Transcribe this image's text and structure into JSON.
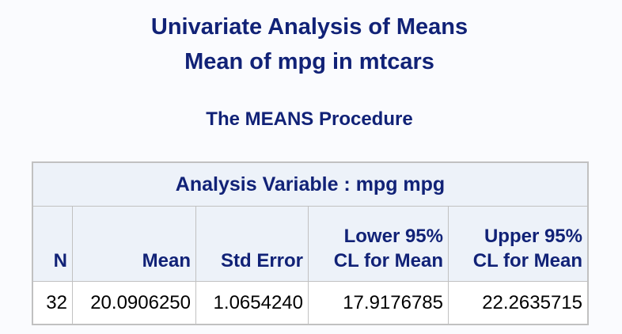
{
  "titles": {
    "line1": "Univariate Analysis of Means",
    "line2": "Mean of mpg in mtcars"
  },
  "procedure": "The MEANS Procedure",
  "colors": {
    "title_text": "#112277",
    "header_background": "#edf2f9",
    "page_background": "#fafbfe",
    "border": "#c1c1c1"
  },
  "table": {
    "caption": "Analysis Variable : mpg mpg",
    "columns": [
      {
        "lines": [
          "N"
        ]
      },
      {
        "lines": [
          "Mean"
        ]
      },
      {
        "lines": [
          "Std Error"
        ]
      },
      {
        "lines": [
          "Lower 95%",
          "CL for Mean"
        ]
      },
      {
        "lines": [
          "Upper 95%",
          "CL for Mean"
        ]
      }
    ],
    "rows": [
      [
        "32",
        "20.0906250",
        "1.0654240",
        "17.9176785",
        "22.2635715"
      ]
    ]
  }
}
